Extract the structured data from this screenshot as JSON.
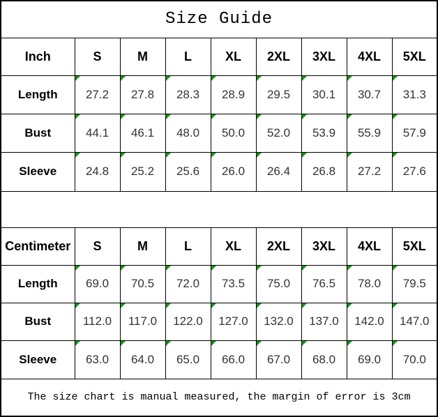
{
  "title": "Size Guide",
  "footer_note": "The size chart is manual measured, the margin of error is 3cm",
  "colors": {
    "border": "#000000",
    "flag_green": "#169416",
    "data_text": "#333333",
    "background": "#ffffff"
  },
  "icons": {
    "corner_flag": "green-triangle-top-left"
  },
  "chart_data": [
    {
      "type": "table",
      "title": "Size Guide",
      "unit_label": "Inch",
      "size_columns": [
        "S",
        "M",
        "L",
        "XL",
        "2XL",
        "3XL",
        "4XL",
        "5XL"
      ],
      "rows": [
        {
          "label": "Length",
          "values": [
            "27.2",
            "27.8",
            "28.3",
            "28.9",
            "29.5",
            "30.1",
            "30.7",
            "31.3"
          ]
        },
        {
          "label": "Bust",
          "values": [
            "44.1",
            "46.1",
            "48.0",
            "50.0",
            "52.0",
            "53.9",
            "55.9",
            "57.9"
          ]
        },
        {
          "label": "Sleeve",
          "values": [
            "24.8",
            "25.2",
            "25.6",
            "26.0",
            "26.4",
            "26.8",
            "27.2",
            "27.6"
          ]
        }
      ]
    },
    {
      "type": "table",
      "unit_label": "Centimeter",
      "size_columns": [
        "S",
        "M",
        "L",
        "XL",
        "2XL",
        "3XL",
        "4XL",
        "5XL"
      ],
      "rows": [
        {
          "label": "Length",
          "values": [
            "69.0",
            "70.5",
            "72.0",
            "73.5",
            "75.0",
            "76.5",
            "78.0",
            "79.5"
          ]
        },
        {
          "label": "Bust",
          "values": [
            "112.0",
            "117.0",
            "122.0",
            "127.0",
            "132.0",
            "137.0",
            "142.0",
            "147.0"
          ]
        },
        {
          "label": "Sleeve",
          "values": [
            "63.0",
            "64.0",
            "65.0",
            "66.0",
            "67.0",
            "68.0",
            "69.0",
            "70.0"
          ]
        }
      ]
    }
  ]
}
